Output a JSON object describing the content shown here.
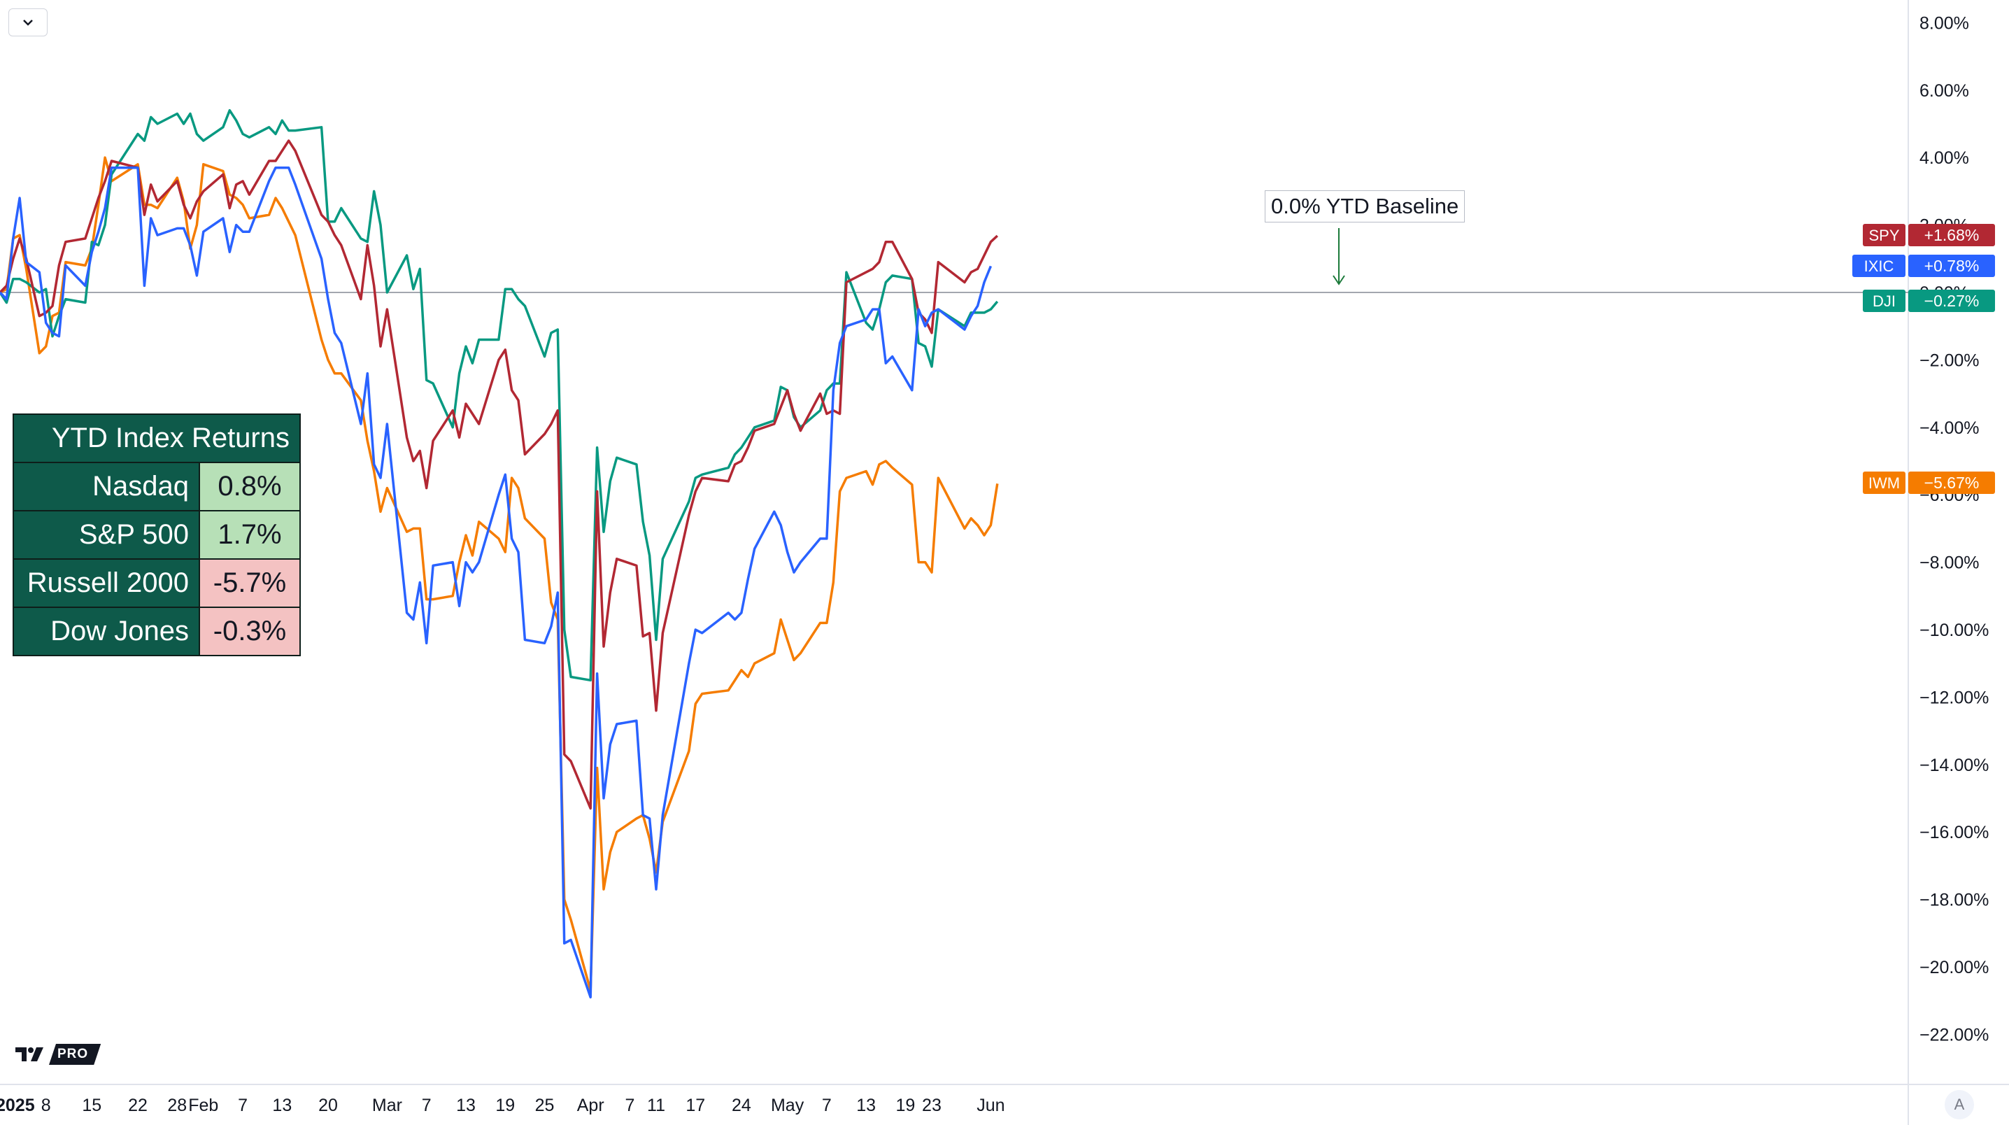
{
  "chart_data": {
    "type": "line",
    "annotation": "0.0% YTD Baseline",
    "y_ticks": [
      "8.00%",
      "6.00%",
      "4.00%",
      "2.00%",
      "0.00%",
      "−2.00%",
      "−4.00%",
      "−6.00%",
      "−8.00%",
      "−10.00%",
      "−12.00%",
      "−14.00%",
      "−16.00%",
      "−18.00%",
      "−20.00%",
      "−22.00%"
    ],
    "y_range": [
      -24,
      8.6
    ],
    "x_ticks": [
      {
        "label": "2025",
        "day": 0,
        "bold": true
      },
      {
        "label": "8",
        "day": 7
      },
      {
        "label": "15",
        "day": 14
      },
      {
        "label": "22",
        "day": 21
      },
      {
        "label": "28",
        "day": 27
      },
      {
        "label": "Feb",
        "day": 31
      },
      {
        "label": "7",
        "day": 37
      },
      {
        "label": "13",
        "day": 43
      },
      {
        "label": "20",
        "day": 50
      },
      {
        "label": "Mar",
        "day": 59
      },
      {
        "label": "7",
        "day": 65
      },
      {
        "label": "13",
        "day": 71
      },
      {
        "label": "19",
        "day": 77
      },
      {
        "label": "25",
        "day": 83
      },
      {
        "label": "Apr",
        "day": 90
      },
      {
        "label": "7",
        "day": 96
      },
      {
        "label": "11",
        "day": 100
      },
      {
        "label": "17",
        "day": 106
      },
      {
        "label": "24",
        "day": 113
      },
      {
        "label": "May",
        "day": 120
      },
      {
        "label": "7",
        "day": 126
      },
      {
        "label": "13",
        "day": 132
      },
      {
        "label": "19",
        "day": 138
      },
      {
        "label": "23",
        "day": 142
      },
      {
        "label": "Jun",
        "day": 151
      }
    ],
    "x_days": [
      0,
      1,
      2,
      3,
      4,
      6,
      7,
      8,
      9,
      10,
      13,
      14,
      15,
      16,
      17,
      21,
      22,
      23,
      24,
      27,
      28,
      29,
      30,
      31,
      34,
      35,
      36,
      37,
      38,
      41,
      42,
      43,
      44,
      45,
      49,
      50,
      51,
      52,
      55,
      56,
      57,
      58,
      59,
      62,
      63,
      64,
      65,
      66,
      69,
      70,
      71,
      72,
      73,
      76,
      77,
      78,
      79,
      80,
      83,
      84,
      85,
      86,
      87,
      90,
      91,
      92,
      93,
      94,
      97,
      98,
      99,
      100,
      101,
      105,
      106,
      107,
      111,
      112,
      113,
      114,
      115,
      118,
      119,
      120,
      121,
      122,
      125,
      126,
      127,
      128,
      129,
      132,
      133,
      134,
      135,
      136,
      139,
      140,
      141,
      142,
      143,
      147,
      148,
      149,
      150,
      151,
      152
    ],
    "series": [
      {
        "name": "SPY",
        "color": "#b22833",
        "last_label": "+1.68%",
        "values": [
          0.0,
          0.2,
          1.0,
          1.6,
          1.0,
          -0.7,
          -0.6,
          -0.4,
          0.8,
          1.5,
          1.6,
          2.2,
          2.8,
          3.3,
          3.9,
          3.7,
          2.3,
          3.2,
          2.7,
          3.3,
          2.6,
          2.2,
          2.7,
          3.0,
          3.5,
          2.5,
          3.2,
          3.3,
          2.9,
          3.9,
          3.9,
          4.2,
          4.5,
          4.2,
          2.3,
          2.1,
          1.7,
          1.4,
          -0.2,
          1.4,
          0.2,
          -1.6,
          -0.5,
          -4.3,
          -5.0,
          -4.7,
          -5.8,
          -4.4,
          -3.5,
          -4.3,
          -3.3,
          -3.6,
          -3.9,
          -2.0,
          -1.7,
          -2.9,
          -3.2,
          -4.8,
          -4.2,
          -3.9,
          -3.5,
          -13.7,
          -13.9,
          -15.3,
          -5.9,
          -10.5,
          -8.9,
          -7.9,
          -8.1,
          -10.2,
          -10.1,
          -12.4,
          -10.1,
          -6.6,
          -5.9,
          -5.5,
          -5.6,
          -5.1,
          -5.0,
          -4.6,
          -4.1,
          -3.9,
          -3.4,
          -2.9,
          -3.6,
          -4.1,
          -3.0,
          -3.6,
          -3.5,
          -3.6,
          0.3,
          0.6,
          0.7,
          0.9,
          1.5,
          1.5,
          0.4,
          -0.6,
          -0.8,
          -1.2,
          0.9,
          0.3,
          0.6,
          0.7,
          1.1,
          1.5,
          1.68
        ]
      },
      {
        "name": "IXIC",
        "color": "#2962ff",
        "last_label": "+0.78%",
        "values": [
          0.0,
          -0.2,
          1.6,
          2.8,
          0.9,
          0.6,
          -0.9,
          -1.2,
          -1.3,
          0.8,
          0.2,
          1.2,
          1.8,
          2.5,
          3.7,
          3.7,
          0.2,
          2.2,
          1.7,
          1.9,
          1.9,
          1.4,
          0.5,
          1.8,
          2.2,
          1.2,
          2.0,
          1.8,
          1.8,
          3.3,
          3.7,
          3.7,
          3.7,
          3.2,
          1.0,
          -0.2,
          -1.2,
          -1.5,
          -3.9,
          -2.4,
          -5.1,
          -5.5,
          -3.9,
          -9.5,
          -9.7,
          -8.6,
          -10.4,
          -8.1,
          -8.0,
          -9.3,
          -8.0,
          -8.3,
          -8.0,
          -6.0,
          -5.4,
          -7.3,
          -7.7,
          -10.3,
          -10.4,
          -9.9,
          -8.9,
          -19.3,
          -19.2,
          -20.9,
          -11.3,
          -15.0,
          -13.4,
          -12.8,
          -12.7,
          -15.5,
          -15.6,
          -17.7,
          -15.5,
          -11.0,
          -10.0,
          -10.1,
          -9.5,
          -9.7,
          -9.5,
          -8.5,
          -7.6,
          -6.5,
          -6.9,
          -7.7,
          -8.3,
          -8.0,
          -7.3,
          -7.3,
          -2.9,
          -1.5,
          -1.0,
          -0.8,
          -0.5,
          -0.5,
          -2.1,
          -1.9,
          -2.9,
          -0.5,
          -1.0,
          -0.6,
          -0.5,
          -1.1,
          -0.7,
          -0.4,
          0.3,
          0.78
        ]
      },
      {
        "name": "DJI",
        "color": "#089981",
        "last_label": "−0.27%",
        "values": [
          0.0,
          -0.3,
          0.4,
          0.4,
          0.3,
          0.0,
          0.1,
          -1.3,
          -0.7,
          -0.2,
          -0.3,
          1.5,
          1.4,
          2.0,
          3.5,
          4.7,
          4.5,
          5.2,
          5.0,
          5.3,
          5.0,
          5.3,
          4.7,
          4.5,
          4.9,
          5.4,
          5.1,
          4.7,
          4.6,
          4.9,
          4.7,
          5.1,
          4.8,
          4.8,
          4.9,
          2.1,
          2.1,
          2.5,
          1.6,
          1.5,
          3.0,
          2.0,
          0.0,
          1.1,
          0.1,
          0.7,
          -2.6,
          -2.7,
          -4.0,
          -2.4,
          -1.6,
          -2.1,
          -1.4,
          -1.4,
          0.1,
          0.1,
          -0.2,
          -0.4,
          -1.9,
          -1.2,
          -1.1,
          -10.0,
          -11.4,
          -11.5,
          -4.6,
          -7.1,
          -5.6,
          -4.9,
          -5.1,
          -6.8,
          -7.8,
          -10.3,
          -7.9,
          -6.2,
          -5.5,
          -5.4,
          -5.2,
          -4.8,
          -4.6,
          -4.3,
          -4.0,
          -3.8,
          -2.8,
          -2.9,
          -3.7,
          -4.0,
          -3.5,
          -2.9,
          -2.7,
          -2.7,
          0.6,
          -0.9,
          -1.1,
          -0.5,
          0.3,
          0.5,
          0.4,
          -1.5,
          -1.6,
          -2.2,
          -0.5,
          -1.0,
          -0.6,
          -0.6,
          -0.6,
          -0.5,
          -0.27
        ]
      },
      {
        "name": "IWM",
        "color": "#f57c00",
        "last_label": "−5.67%",
        "values": [
          0.0,
          0.1,
          1.6,
          1.7,
          0.7,
          -1.8,
          -1.6,
          -0.7,
          -0.6,
          0.9,
          0.8,
          1.3,
          2.6,
          4.0,
          3.3,
          3.8,
          2.6,
          2.6,
          2.5,
          3.4,
          2.7,
          1.3,
          2.0,
          3.8,
          3.6,
          2.9,
          2.8,
          2.6,
          2.2,
          2.3,
          2.8,
          2.5,
          2.1,
          1.7,
          -1.4,
          -2.0,
          -2.4,
          -2.4,
          -3.2,
          -4.4,
          -5.3,
          -6.5,
          -5.8,
          -7.1,
          -7.0,
          -7.0,
          -9.1,
          -9.1,
          -9.0,
          -8.0,
          -7.2,
          -7.8,
          -6.8,
          -7.3,
          -7.7,
          -5.5,
          -5.8,
          -6.7,
          -7.3,
          -9.2,
          -9.7,
          -18.0,
          -18.6,
          -20.7,
          -14.1,
          -17.7,
          -16.6,
          -16.0,
          -15.6,
          -15.5,
          -16.2,
          -17.2,
          -15.7,
          -13.6,
          -12.2,
          -11.9,
          -11.8,
          -11.5,
          -11.2,
          -11.4,
          -11.0,
          -10.7,
          -9.7,
          -10.3,
          -10.9,
          -10.7,
          -9.8,
          -9.8,
          -8.6,
          -5.9,
          -5.5,
          -5.3,
          -5.7,
          -5.1,
          -5.0,
          -5.2,
          -5.7,
          -8.0,
          -8.0,
          -8.3,
          -5.5,
          -7.0,
          -6.7,
          -6.9,
          -7.2,
          -6.9,
          -5.67
        ]
      }
    ]
  },
  "ytd_table": {
    "title": "YTD Index Returns",
    "rows": [
      {
        "name": "Nasdaq",
        "value": "0.8%",
        "bg": "#b7e0b7"
      },
      {
        "name": "S&P 500",
        "value": "1.7%",
        "bg": "#b7e0b7"
      },
      {
        "name": "Russell 2000",
        "value": "-5.7%",
        "bg": "#f4c2c2"
      },
      {
        "name": "Dow Jones",
        "value": "-0.3%",
        "bg": "#f4c2c2"
      }
    ]
  },
  "ui": {
    "collapse_icon": "chevron-down-icon",
    "auto_scale_label": "A",
    "logo_text": "PRO"
  }
}
